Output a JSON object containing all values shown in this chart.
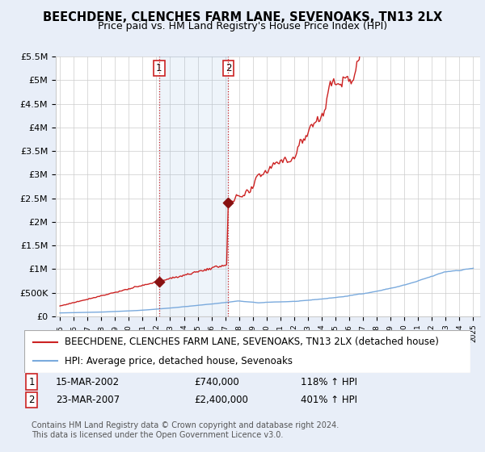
{
  "title": "BEECHDENE, CLENCHES FARM LANE, SEVENOAKS, TN13 2LX",
  "subtitle": "Price paid vs. HM Land Registry's House Price Index (HPI)",
  "ylabel_ticks": [
    "£0",
    "£500K",
    "£1M",
    "£1.5M",
    "£2M",
    "£2.5M",
    "£3M",
    "£3.5M",
    "£4M",
    "£4.5M",
    "£5M",
    "£5.5M"
  ],
  "ylim": [
    0,
    5500000
  ],
  "yticks": [
    0,
    500000,
    1000000,
    1500000,
    2000000,
    2500000,
    3000000,
    3500000,
    4000000,
    4500000,
    5000000,
    5500000
  ],
  "xlim_start": 1994.7,
  "xlim_end": 2025.5,
  "hpi_color": "#7aaadd",
  "sale_color": "#cc2222",
  "sale_marker_color": "#881111",
  "purchase1": {
    "date_num": 2002.2,
    "price": 740000,
    "label": "1"
  },
  "purchase2": {
    "date_num": 2007.22,
    "price": 2400000,
    "label": "2"
  },
  "legend_sale_label": "BEECHDENE, CLENCHES FARM LANE, SEVENOAKS, TN13 2LX (detached house)",
  "legend_hpi_label": "HPI: Average price, detached house, Sevenoaks",
  "annotation1": {
    "box_label": "1",
    "date": "15-MAR-2002",
    "price": "£740,000",
    "hpi": "118% ↑ HPI"
  },
  "annotation2": {
    "box_label": "2",
    "date": "23-MAR-2007",
    "price": "£2,400,000",
    "hpi": "401% ↑ HPI"
  },
  "footer": "Contains HM Land Registry data © Crown copyright and database right 2024.\nThis data is licensed under the Open Government Licence v3.0.",
  "background_color": "#e8eef8",
  "plot_bg_color": "#ffffff",
  "vline_color": "#cc2222",
  "vline_style": ":",
  "grid_color": "#cccccc",
  "title_fontsize": 10.5,
  "subtitle_fontsize": 9,
  "tick_fontsize": 8,
  "legend_fontsize": 8.5,
  "annotation_fontsize": 8.5,
  "footer_fontsize": 7
}
